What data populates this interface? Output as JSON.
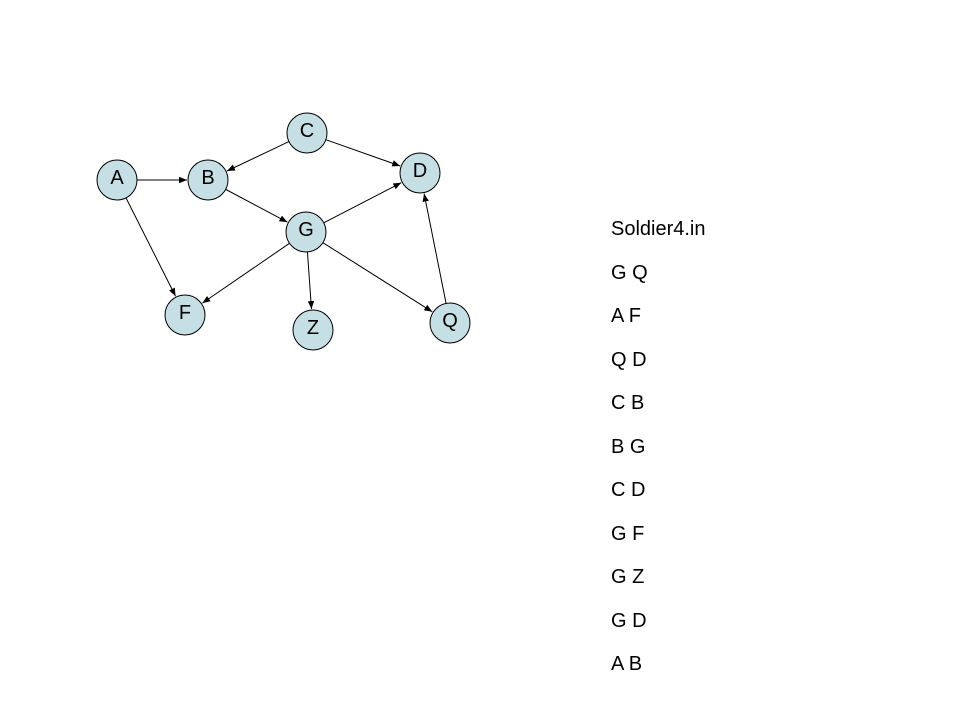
{
  "graph": {
    "nodes": [
      {
        "id": "A",
        "label": "A"
      },
      {
        "id": "B",
        "label": "B"
      },
      {
        "id": "C",
        "label": "C"
      },
      {
        "id": "D",
        "label": "D"
      },
      {
        "id": "G",
        "label": "G"
      },
      {
        "id": "F",
        "label": "F"
      },
      {
        "id": "Z",
        "label": "Z"
      },
      {
        "id": "Q",
        "label": "Q"
      }
    ],
    "edges": [
      {
        "from": "A",
        "to": "B"
      },
      {
        "from": "A",
        "to": "F"
      },
      {
        "from": "C",
        "to": "B"
      },
      {
        "from": "C",
        "to": "D"
      },
      {
        "from": "B",
        "to": "G"
      },
      {
        "from": "G",
        "to": "D"
      },
      {
        "from": "G",
        "to": "F"
      },
      {
        "from": "G",
        "to": "Z"
      },
      {
        "from": "G",
        "to": "Q"
      },
      {
        "from": "Q",
        "to": "D"
      }
    ],
    "node_fill": "#c5dfe5"
  },
  "panel": {
    "title": "Soldier4.in",
    "lines": [
      "G Q",
      "A F",
      "Q D",
      "C B",
      "B G",
      "C D",
      "G F",
      "G Z",
      "G D",
      "A B"
    ]
  }
}
